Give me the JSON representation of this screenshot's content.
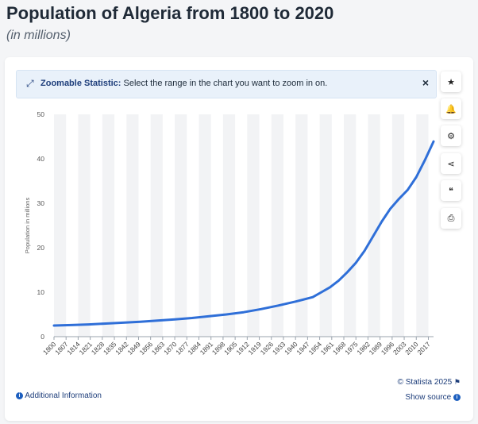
{
  "header": {
    "title": "Population of Algeria from 1800 to 2020",
    "subtitle": "(in millions)"
  },
  "zoom_banner": {
    "icon": "expand-icon",
    "label": "Zoomable Statistic:",
    "text": "Select the range in the chart you want to zoom in on.",
    "close": "×"
  },
  "toolbar": [
    {
      "name": "star-icon",
      "glyph": "★"
    },
    {
      "name": "bell-icon",
      "glyph": "🔔"
    },
    {
      "name": "gear-icon",
      "glyph": "⚙"
    },
    {
      "name": "share-icon",
      "glyph": "⋖"
    },
    {
      "name": "quote-icon",
      "glyph": "❝"
    },
    {
      "name": "print-icon",
      "glyph": "⎙"
    }
  ],
  "footer": {
    "additional_info": "Additional Information",
    "copyright": "© Statista 2025",
    "show_source": "Show source"
  },
  "colors": {
    "line": "#2f6fd8",
    "accent": "#1d3d7a"
  },
  "chart_data": {
    "type": "line",
    "title": "Population of Algeria from 1800 to 2020",
    "ylabel": "Population in millions",
    "xlabel": "",
    "ylim": [
      0,
      50
    ],
    "yticks": [
      0,
      10,
      20,
      30,
      40,
      50
    ],
    "xlim": [
      1800,
      2020
    ],
    "xticks": [
      1800,
      1807,
      1814,
      1821,
      1828,
      1835,
      1842,
      1849,
      1856,
      1863,
      1870,
      1877,
      1884,
      1891,
      1898,
      1905,
      1912,
      1919,
      1926,
      1933,
      1940,
      1947,
      1954,
      1961,
      1968,
      1975,
      1982,
      1989,
      1996,
      2003,
      2010,
      2017
    ],
    "grid": "vertical alternating bands",
    "series": [
      {
        "x": [
          1800,
          1810,
          1820,
          1830,
          1840,
          1850,
          1860,
          1870,
          1880,
          1890,
          1900,
          1910,
          1920,
          1930,
          1940,
          1950,
          1955,
          1960,
          1965,
          1970,
          1975,
          1980,
          1985,
          1990,
          1995,
          2000,
          2005,
          2010,
          2015,
          2020
        ],
        "values": [
          2.5,
          2.6,
          2.75,
          2.95,
          3.15,
          3.35,
          3.6,
          3.9,
          4.2,
          4.6,
          5.0,
          5.5,
          6.2,
          7.0,
          7.9,
          8.9,
          10.0,
          11.1,
          12.6,
          14.5,
          16.6,
          19.3,
          22.6,
          25.9,
          28.8,
          31.0,
          33.0,
          35.9,
          39.7,
          43.9
        ]
      }
    ]
  }
}
